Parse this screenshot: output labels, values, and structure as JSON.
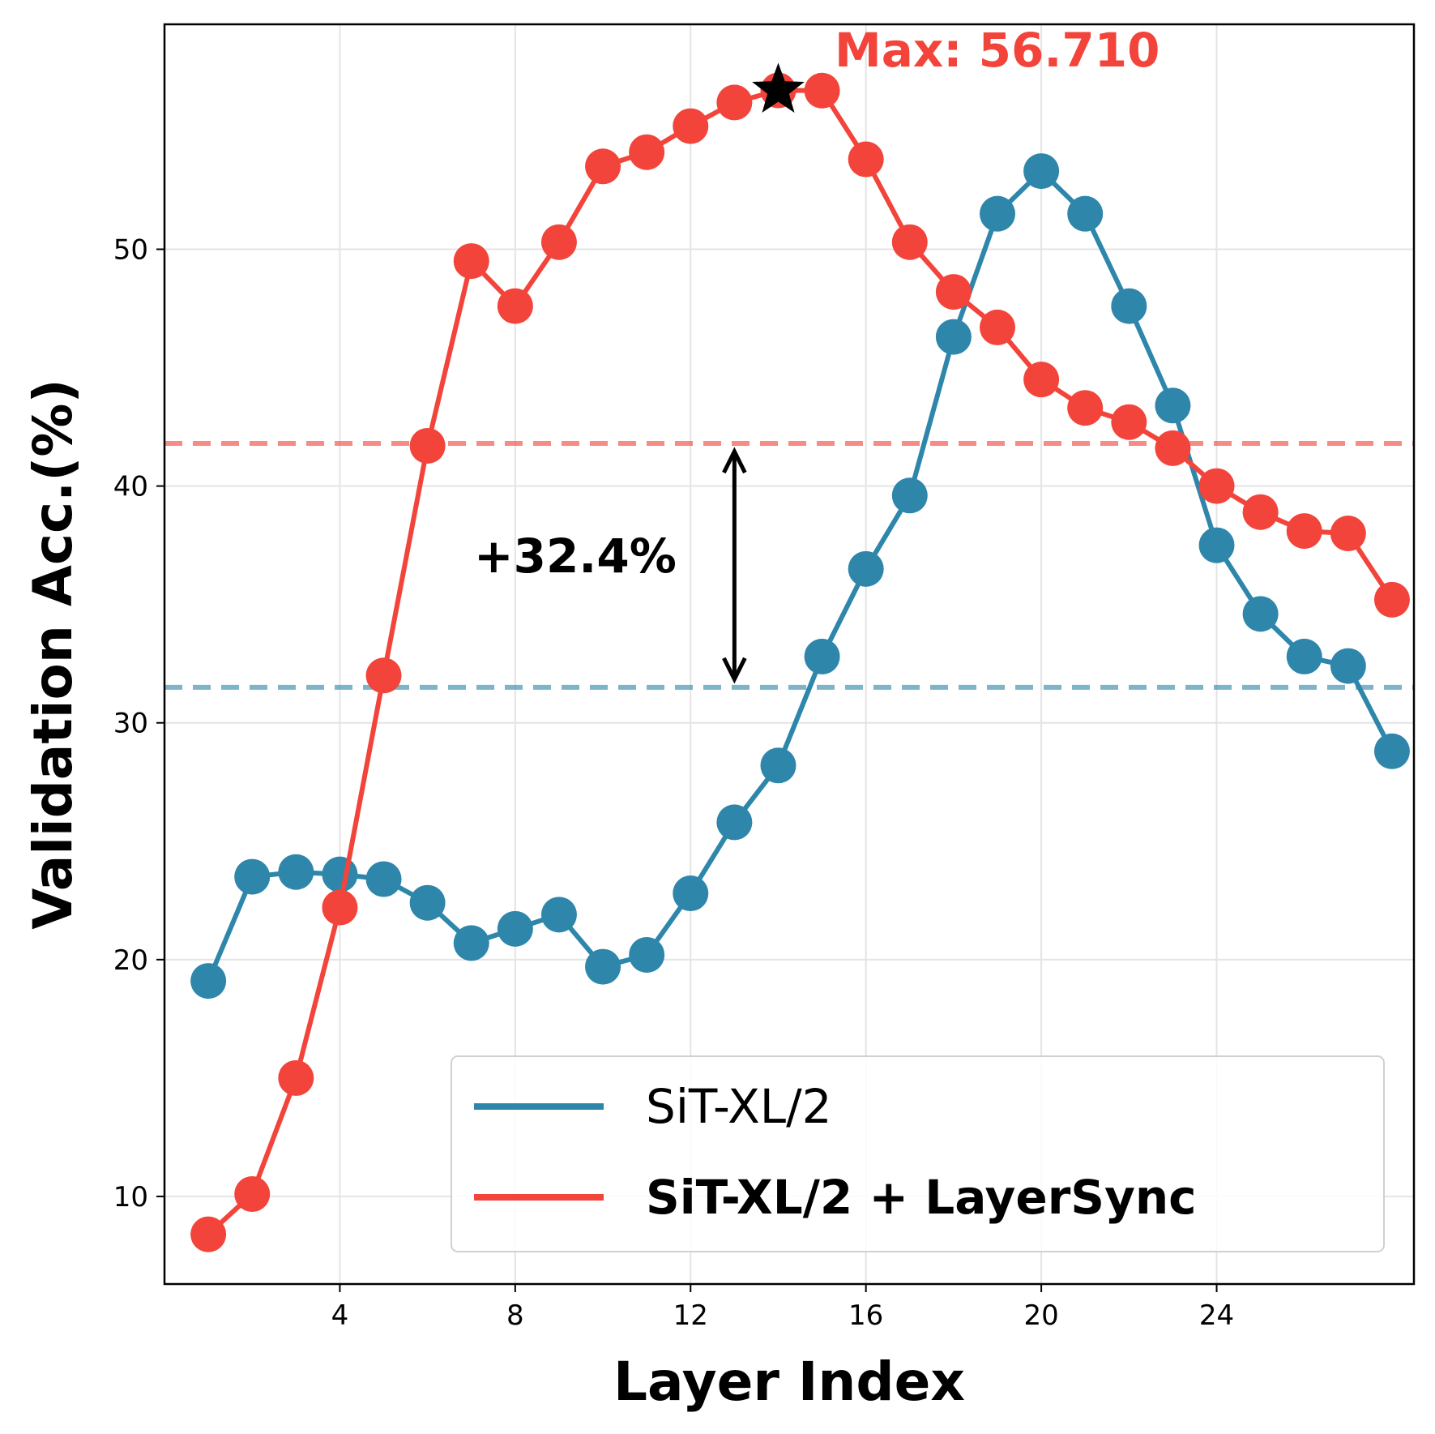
{
  "chart_data": {
    "type": "line",
    "xlabel": "Layer Index",
    "ylabel": "Validation Acc.(%)",
    "xlim": [
      0,
      28.5
    ],
    "ylim": [
      6.3,
      59.5
    ],
    "xticks": [
      4,
      8,
      12,
      16,
      20,
      24
    ],
    "yticks": [
      10,
      20,
      30,
      40,
      50
    ],
    "grid": true,
    "legend_position": "lower-right",
    "x": [
      1,
      2,
      3,
      4,
      5,
      6,
      7,
      8,
      9,
      10,
      11,
      12,
      13,
      14,
      15,
      16,
      17,
      18,
      19,
      20,
      21,
      22,
      23,
      24,
      25,
      26,
      27,
      28
    ],
    "series": [
      {
        "name": "SiT-XL/2",
        "color": "#2e86ab",
        "bold": false,
        "values": [
          19.1,
          23.5,
          23.7,
          23.6,
          23.4,
          22.4,
          20.7,
          21.3,
          21.9,
          19.7,
          20.2,
          22.8,
          25.8,
          28.2,
          32.8,
          36.5,
          39.6,
          46.3,
          51.5,
          53.3,
          51.5,
          47.6,
          43.4,
          37.5,
          34.6,
          32.8,
          32.4,
          28.8
        ]
      },
      {
        "name": "SiT-XL/2 + LayerSync",
        "color": "#f2443a",
        "bold": true,
        "values": [
          8.4,
          10.1,
          15.0,
          22.2,
          32.0,
          41.7,
          49.5,
          47.6,
          50.3,
          53.5,
          54.1,
          55.2,
          56.2,
          56.71,
          56.7,
          53.8,
          50.3,
          48.2,
          46.7,
          44.5,
          43.3,
          42.7,
          41.6,
          40.0,
          38.9,
          38.1,
          38.0,
          35.2
        ]
      }
    ],
    "reference_lines": [
      {
        "y": 41.8,
        "color": "#f2443a",
        "style": "dashed"
      },
      {
        "y": 31.5,
        "color": "#2e86ab",
        "style": "dashed"
      }
    ],
    "annotations": {
      "max_label": "Max: 56.710",
      "max_point": {
        "x": 14,
        "y": 56.71
      },
      "gap_label": "+32.4%",
      "gap_arrow": {
        "x": 13,
        "y_top": 41.8,
        "y_bottom": 31.5
      }
    }
  }
}
